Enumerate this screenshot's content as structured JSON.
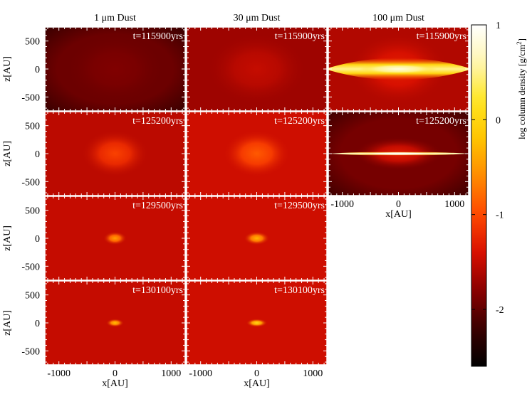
{
  "chart_data": {
    "type": "heatmap",
    "columns": [
      "1 μm Dust",
      "30 μm Dust",
      "100 μm Dust"
    ],
    "xlabel": "x[AU]",
    "ylabel": "z[AU]",
    "xlim": [
      -1250,
      1250
    ],
    "ylim": [
      -750,
      750
    ],
    "x_ticks": [
      -1000,
      0,
      1000
    ],
    "y_ticks": [
      -500,
      0,
      500
    ],
    "colorbar": {
      "label": "log column density [g/cm",
      "label_sup": "2",
      "label_end": "]",
      "min": -2.6,
      "max": 1,
      "ticks": [
        -2,
        -1,
        0,
        1
      ],
      "colormap": [
        "#000000",
        "#3a0000",
        "#8a0000",
        "#d81000",
        "#ff4800",
        "#ff8a00",
        "#ffc400",
        "#ffe620",
        "#fff6b0",
        "#ffffff"
      ]
    },
    "panels": [
      {
        "row": 0,
        "col": 0,
        "time": "t=115900yrs",
        "background": -1.95,
        "core": -1.85,
        "core_rx": 900,
        "core_rz": 650,
        "disk": null
      },
      {
        "row": 0,
        "col": 1,
        "time": "t=115900yrs",
        "background": -1.7,
        "core": -1.5,
        "core_rx": 900,
        "core_rz": 650,
        "disk": null
      },
      {
        "row": 0,
        "col": 2,
        "time": "t=115900yrs",
        "background": -1.6,
        "core": -1.3,
        "core_rx": 900,
        "core_rz": 650,
        "disk": {
          "peak": 0.5,
          "half_width": 1250,
          "half_thickness": 190
        }
      },
      {
        "row": 1,
        "col": 0,
        "time": "t=125200yrs",
        "background": -1.55,
        "core": -1.05,
        "core_rx": 600,
        "core_rz": 420,
        "disk": null
      },
      {
        "row": 1,
        "col": 1,
        "time": "t=125200yrs",
        "background": -1.45,
        "core": -0.9,
        "core_rx": 600,
        "core_rz": 420,
        "disk": null
      },
      {
        "row": 1,
        "col": 2,
        "time": "t=125200yrs",
        "background": -1.9,
        "core": -1.3,
        "core_rx": 800,
        "core_rz": 300,
        "disk": {
          "peak": 0.9,
          "half_width": 1200,
          "half_thickness": 35
        }
      },
      {
        "row": 2,
        "col": 0,
        "time": "t=129500yrs",
        "background": -1.5,
        "core": -0.45,
        "core_rx": 210,
        "core_rz": 120,
        "disk": null
      },
      {
        "row": 2,
        "col": 1,
        "time": "t=129500yrs",
        "background": -1.45,
        "core": -0.3,
        "core_rx": 230,
        "core_rz": 120,
        "disk": null
      },
      {
        "row": 3,
        "col": 0,
        "time": "t=130100yrs",
        "background": -1.5,
        "core": -0.2,
        "core_rx": 160,
        "core_rz": 75,
        "disk": null
      },
      {
        "row": 3,
        "col": 1,
        "time": "t=130100yrs",
        "background": -1.45,
        "core": 0.05,
        "core_rx": 190,
        "core_rz": 75,
        "disk": null
      }
    ]
  }
}
